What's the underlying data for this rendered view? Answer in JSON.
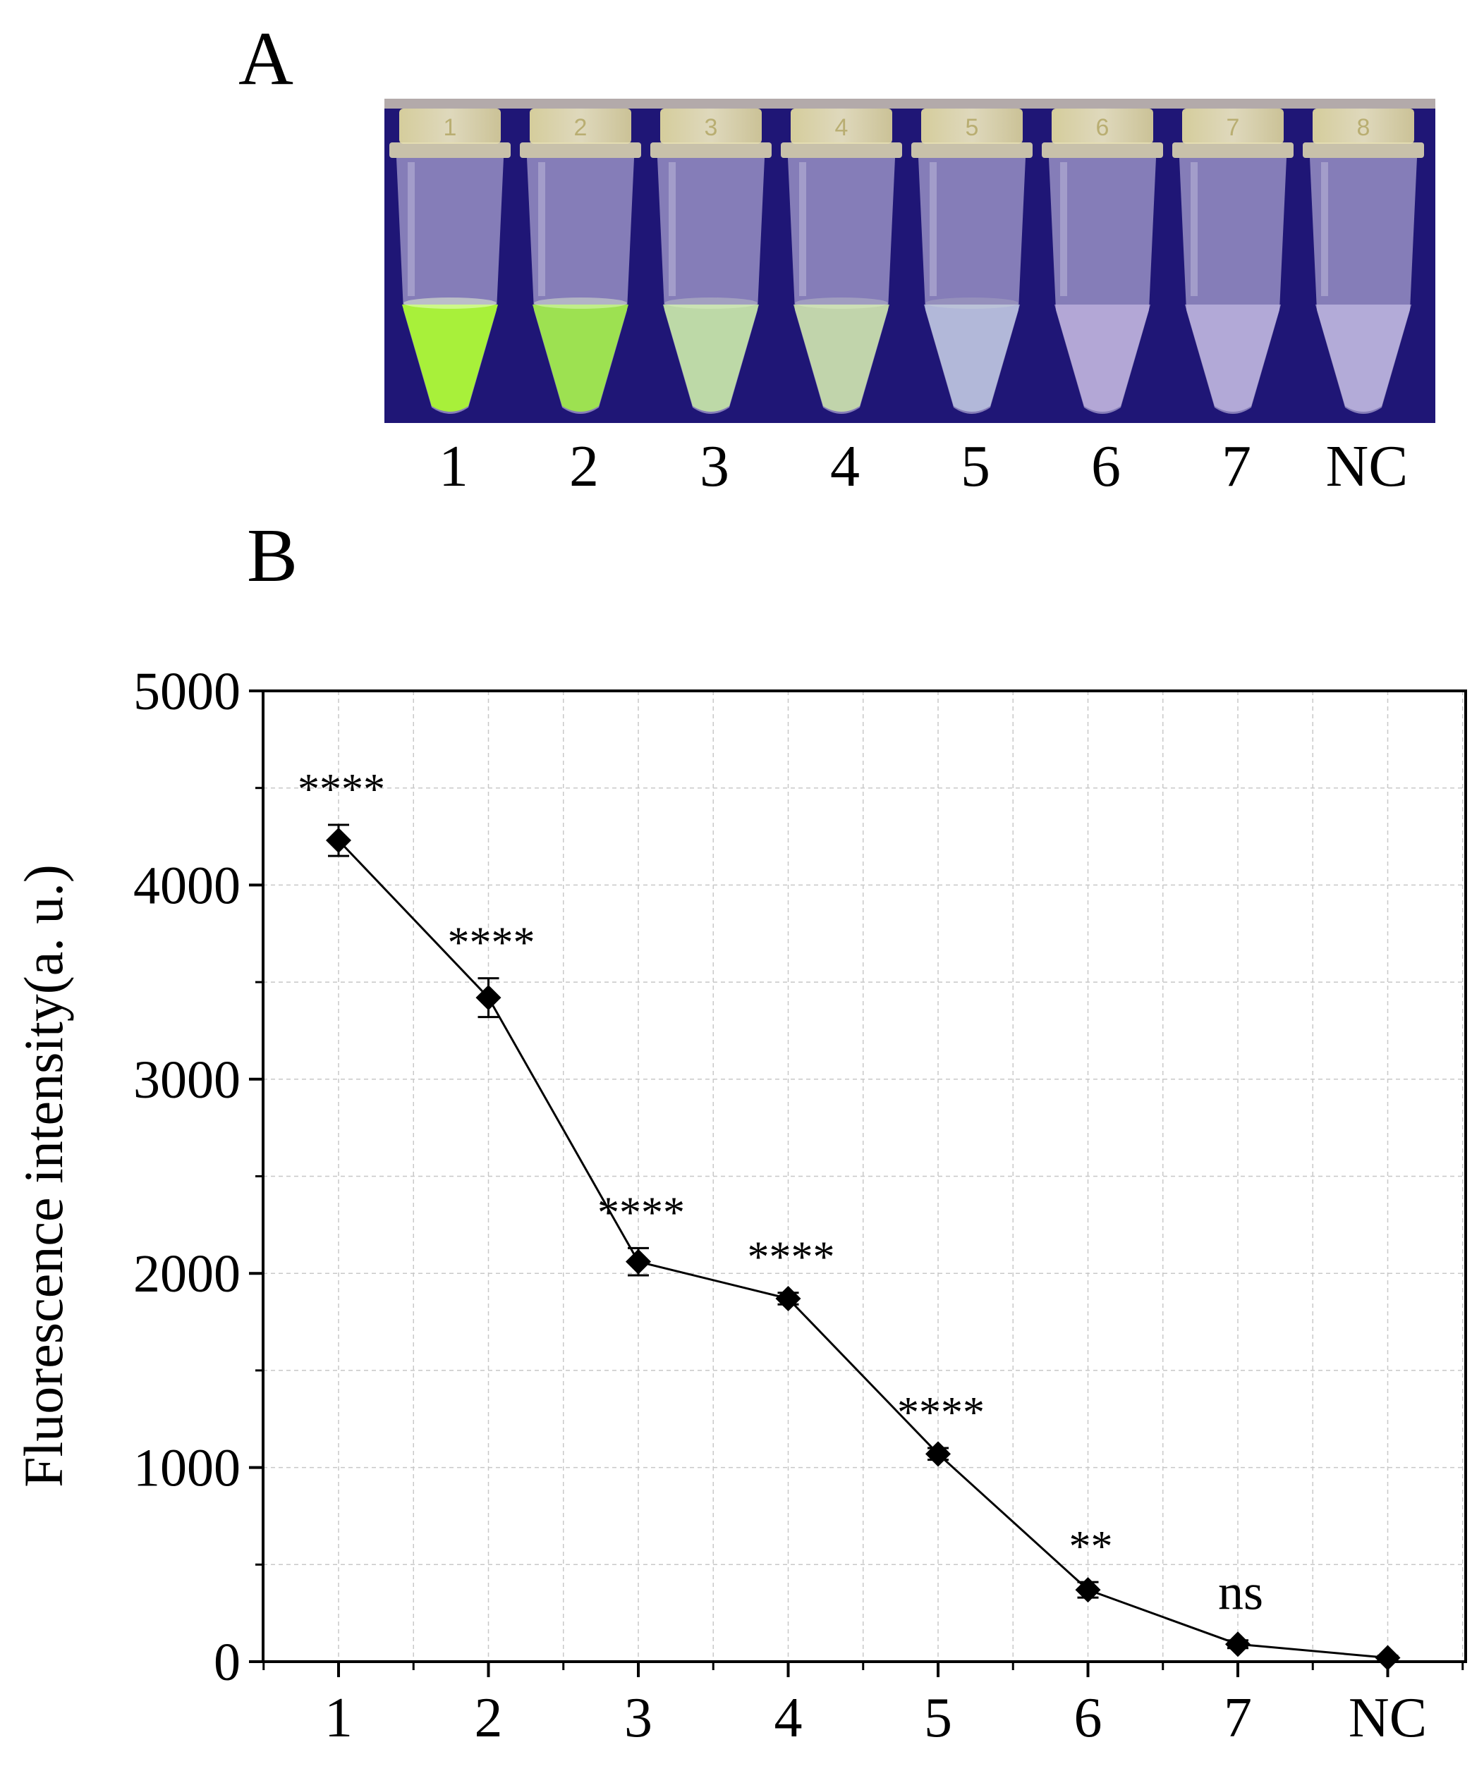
{
  "panels": {
    "a": "A",
    "b": "B"
  },
  "photo": {
    "background": "#1f1676",
    "tube_numbers": [
      "1",
      "2",
      "3",
      "4",
      "5",
      "6",
      "7",
      "8"
    ],
    "tubes": [
      {
        "tag": "1",
        "liquid": "#a8f03a",
        "glow": 1.0
      },
      {
        "tag": "2",
        "liquid": "#9ee84a",
        "glow": 0.85
      },
      {
        "tag": "3",
        "liquid": "#c9eea4",
        "glow": 0.55
      },
      {
        "tag": "4",
        "liquid": "#cfeaa8",
        "glow": 0.5
      },
      {
        "tag": "5",
        "liquid": "#c4cfe6",
        "glow": 0.3
      },
      {
        "tag": "6",
        "liquid": "#cdbfe8",
        "glow": 0.1
      },
      {
        "tag": "7",
        "liquid": "#cfc5ea",
        "glow": 0.05
      },
      {
        "tag": "8",
        "liquid": "#d2c9ec",
        "glow": 0.0
      }
    ],
    "labels": [
      "1",
      "2",
      "3",
      "4",
      "5",
      "6",
      "7",
      "NC"
    ]
  },
  "chart_data": {
    "type": "line",
    "categories": [
      "1",
      "2",
      "3",
      "4",
      "5",
      "6",
      "7",
      "NC"
    ],
    "values": [
      4230,
      3420,
      2060,
      1870,
      1070,
      370,
      90,
      20
    ],
    "errors": [
      80,
      100,
      70,
      30,
      30,
      40,
      20,
      10
    ],
    "annotations": [
      "****",
      "****",
      "****",
      "****",
      "****",
      "**",
      "ns",
      ""
    ],
    "ylabel": "Fluorescence intensity(a. u.)",
    "xlabel": "",
    "title": "",
    "ylim": [
      0,
      5000
    ],
    "yticks": [
      "0",
      "1000",
      "2000",
      "3000",
      "4000",
      "5000"
    ],
    "grid": true,
    "marker": "diamond",
    "color": "#000000"
  }
}
